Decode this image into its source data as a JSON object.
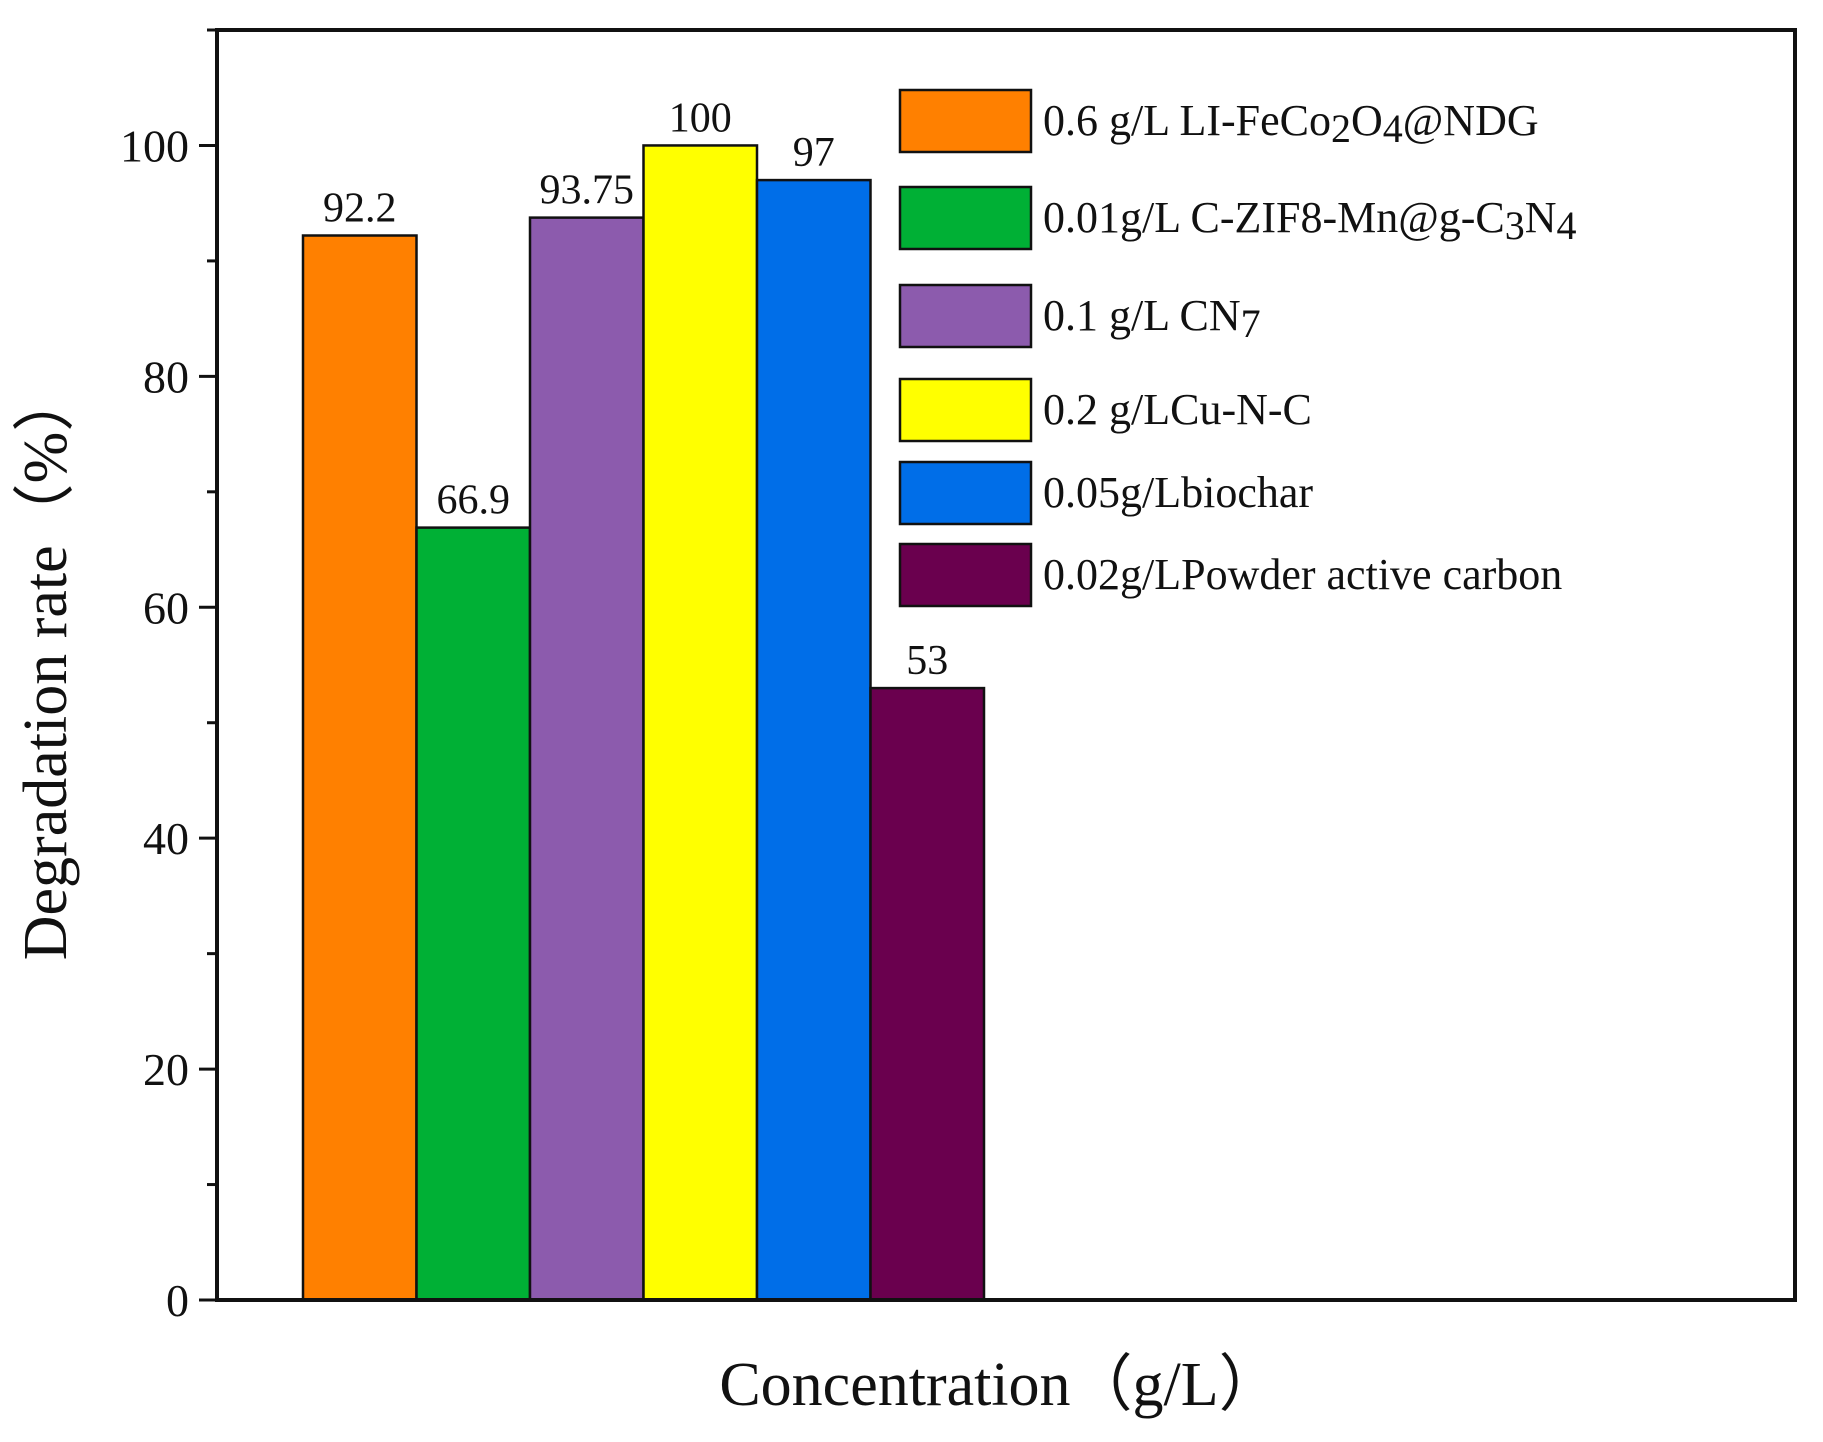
{
  "chart_data": {
    "type": "bar",
    "xlabel": "Concentration（g/L）",
    "ylabel": "Degradation rate（%）",
    "ylim": [
      0,
      110
    ],
    "yticks": [
      0,
      20,
      40,
      60,
      80,
      100
    ],
    "grid": false,
    "legend_position": "top-right",
    "series": [
      {
        "name": "0.6 g/L LI-FeCo2O4@NDG",
        "name_parts": [
          {
            "t": "0.6 g/L LI-FeCo"
          },
          {
            "t": "2",
            "sub": true
          },
          {
            "t": "O"
          },
          {
            "t": "4",
            "sub": true
          },
          {
            "t": "@NDG"
          }
        ],
        "value": 92.2,
        "label": "92.2",
        "color": "#FF8000"
      },
      {
        "name": "0.01g/L C-ZIF8-Mn@g-C3N4",
        "name_parts": [
          {
            "t": "0.01g/L C-ZIF8-Mn@g-C"
          },
          {
            "t": "3",
            "sub": true
          },
          {
            "t": "N"
          },
          {
            "t": "4",
            "sub": true
          }
        ],
        "value": 66.9,
        "label": "66.9",
        "color": "#00B035"
      },
      {
        "name": "0.1 g/L CN7",
        "name_parts": [
          {
            "t": "0.1 g/L CN"
          },
          {
            "t": "7",
            "sub": true
          }
        ],
        "value": 93.75,
        "label": "93.75",
        "color": "#8C5BAD"
      },
      {
        "name": "0.2 g/LCu-N-C",
        "name_parts": [
          {
            "t": "0.2 g/LCu-N-C"
          }
        ],
        "value": 100,
        "label": "100",
        "color": "#FFFF00"
      },
      {
        "name": "0.05g/Lbiochar",
        "name_parts": [
          {
            "t": "0.05g/Lbiochar"
          }
        ],
        "value": 97,
        "label": "97",
        "color": "#006EE8"
      },
      {
        "name": "0.02g/LPowder active carbon",
        "name_parts": [
          {
            "t": "0.02g/LPowder active carbon"
          }
        ],
        "value": 53,
        "label": "53",
        "color": "#6A004E"
      }
    ]
  }
}
